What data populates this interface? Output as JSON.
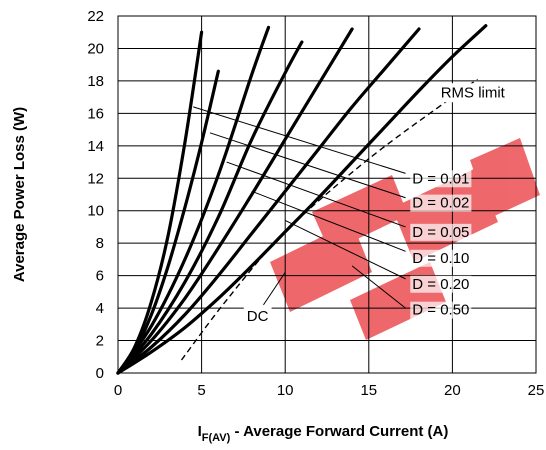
{
  "chart_data": {
    "type": "line",
    "title": "",
    "xlabel_main": "I",
    "xlabel_sub": "F(AV)",
    "xlabel_rest": " - Average Forward Current (A)",
    "ylabel": "Average Power Loss (W)",
    "xlim": [
      0,
      25
    ],
    "ylim": [
      0,
      22
    ],
    "x_ticks": [
      0,
      5,
      10,
      15,
      20,
      25
    ],
    "y_ticks": [
      0,
      2,
      4,
      6,
      8,
      10,
      12,
      14,
      16,
      18,
      20,
      22
    ],
    "grid": true,
    "series": [
      {
        "points": [
          [
            0,
            0
          ],
          [
            1,
            1.6
          ],
          [
            2,
            4.4
          ],
          [
            3,
            8.5
          ],
          [
            4,
            14.2
          ],
          [
            5,
            21
          ]
        ]
      },
      {
        "points": [
          [
            0,
            0
          ],
          [
            1,
            1.4
          ],
          [
            2,
            3.6
          ],
          [
            3,
            6.6
          ],
          [
            4,
            10.2
          ],
          [
            5,
            14.2
          ],
          [
            6,
            18.6
          ]
        ]
      },
      {
        "points": [
          [
            0,
            0
          ],
          [
            2,
            2.9
          ],
          [
            4,
            7.0
          ],
          [
            6,
            12.2
          ],
          [
            8,
            18.4
          ],
          [
            9,
            21.3
          ]
        ]
      },
      {
        "points": [
          [
            0,
            0
          ],
          [
            2,
            2.4
          ],
          [
            4,
            5.6
          ],
          [
            6,
            9.6
          ],
          [
            8,
            14.4
          ],
          [
            10,
            18.5
          ],
          [
            11,
            20.4
          ]
        ]
      },
      {
        "points": [
          [
            0,
            0
          ],
          [
            2,
            2.0
          ],
          [
            4,
            4.6
          ],
          [
            6,
            7.7
          ],
          [
            8,
            11.0
          ],
          [
            10,
            14.4
          ],
          [
            12,
            17.8
          ],
          [
            14,
            21.2
          ]
        ]
      },
      {
        "points": [
          [
            0,
            0
          ],
          [
            2,
            1.6
          ],
          [
            4,
            3.6
          ],
          [
            6,
            6.0
          ],
          [
            8,
            8.6
          ],
          [
            10,
            11.2
          ],
          [
            12,
            13.8
          ],
          [
            14,
            16.4
          ],
          [
            16,
            18.8
          ],
          [
            18,
            21.2
          ]
        ]
      },
      {
        "points": [
          [
            0,
            0
          ],
          [
            2,
            1.3
          ],
          [
            4,
            2.8
          ],
          [
            6,
            4.6
          ],
          [
            8,
            6.6
          ],
          [
            10,
            8.7
          ],
          [
            12,
            10.8
          ],
          [
            14,
            13.0
          ],
          [
            16,
            15.2
          ],
          [
            18,
            17.4
          ],
          [
            20,
            19.5
          ],
          [
            22,
            21.4
          ]
        ]
      }
    ],
    "rms_limit": {
      "label": "RMS limit",
      "points": [
        [
          3.8,
          0.8
        ],
        [
          6.5,
          4.5
        ],
        [
          10,
          8.7
        ],
        [
          15,
          13.2
        ],
        [
          20,
          17.0
        ],
        [
          21.5,
          18.1
        ]
      ]
    },
    "dc_label": "DC",
    "duty_labels": [
      "D = 0.01",
      "D = 0.02",
      "D = 0.05",
      "D = 0.10",
      "D = 0.20",
      "D = 0.50"
    ],
    "duty_leaders": [
      {
        "from": [
          4.5,
          16.4
        ],
        "to": [
          17.2,
          12.3
        ]
      },
      {
        "from": [
          5.5,
          14.8
        ],
        "to": [
          17.2,
          10.8
        ]
      },
      {
        "from": [
          6.5,
          13.0
        ],
        "to": [
          17.2,
          9.0
        ]
      },
      {
        "from": [
          8.0,
          11.2
        ],
        "to": [
          17.2,
          7.5
        ]
      },
      {
        "from": [
          10.0,
          9.4
        ],
        "to": [
          17.2,
          5.8
        ]
      },
      {
        "from": [
          14.0,
          6.6
        ],
        "to": [
          17.2,
          4.0
        ]
      }
    ],
    "dc_leader": {
      "from": [
        10.0,
        6.2
      ],
      "to": [
        8.7,
        4.2
      ]
    },
    "series_color": "#000000",
    "watermark_color": "#e8353b"
  }
}
